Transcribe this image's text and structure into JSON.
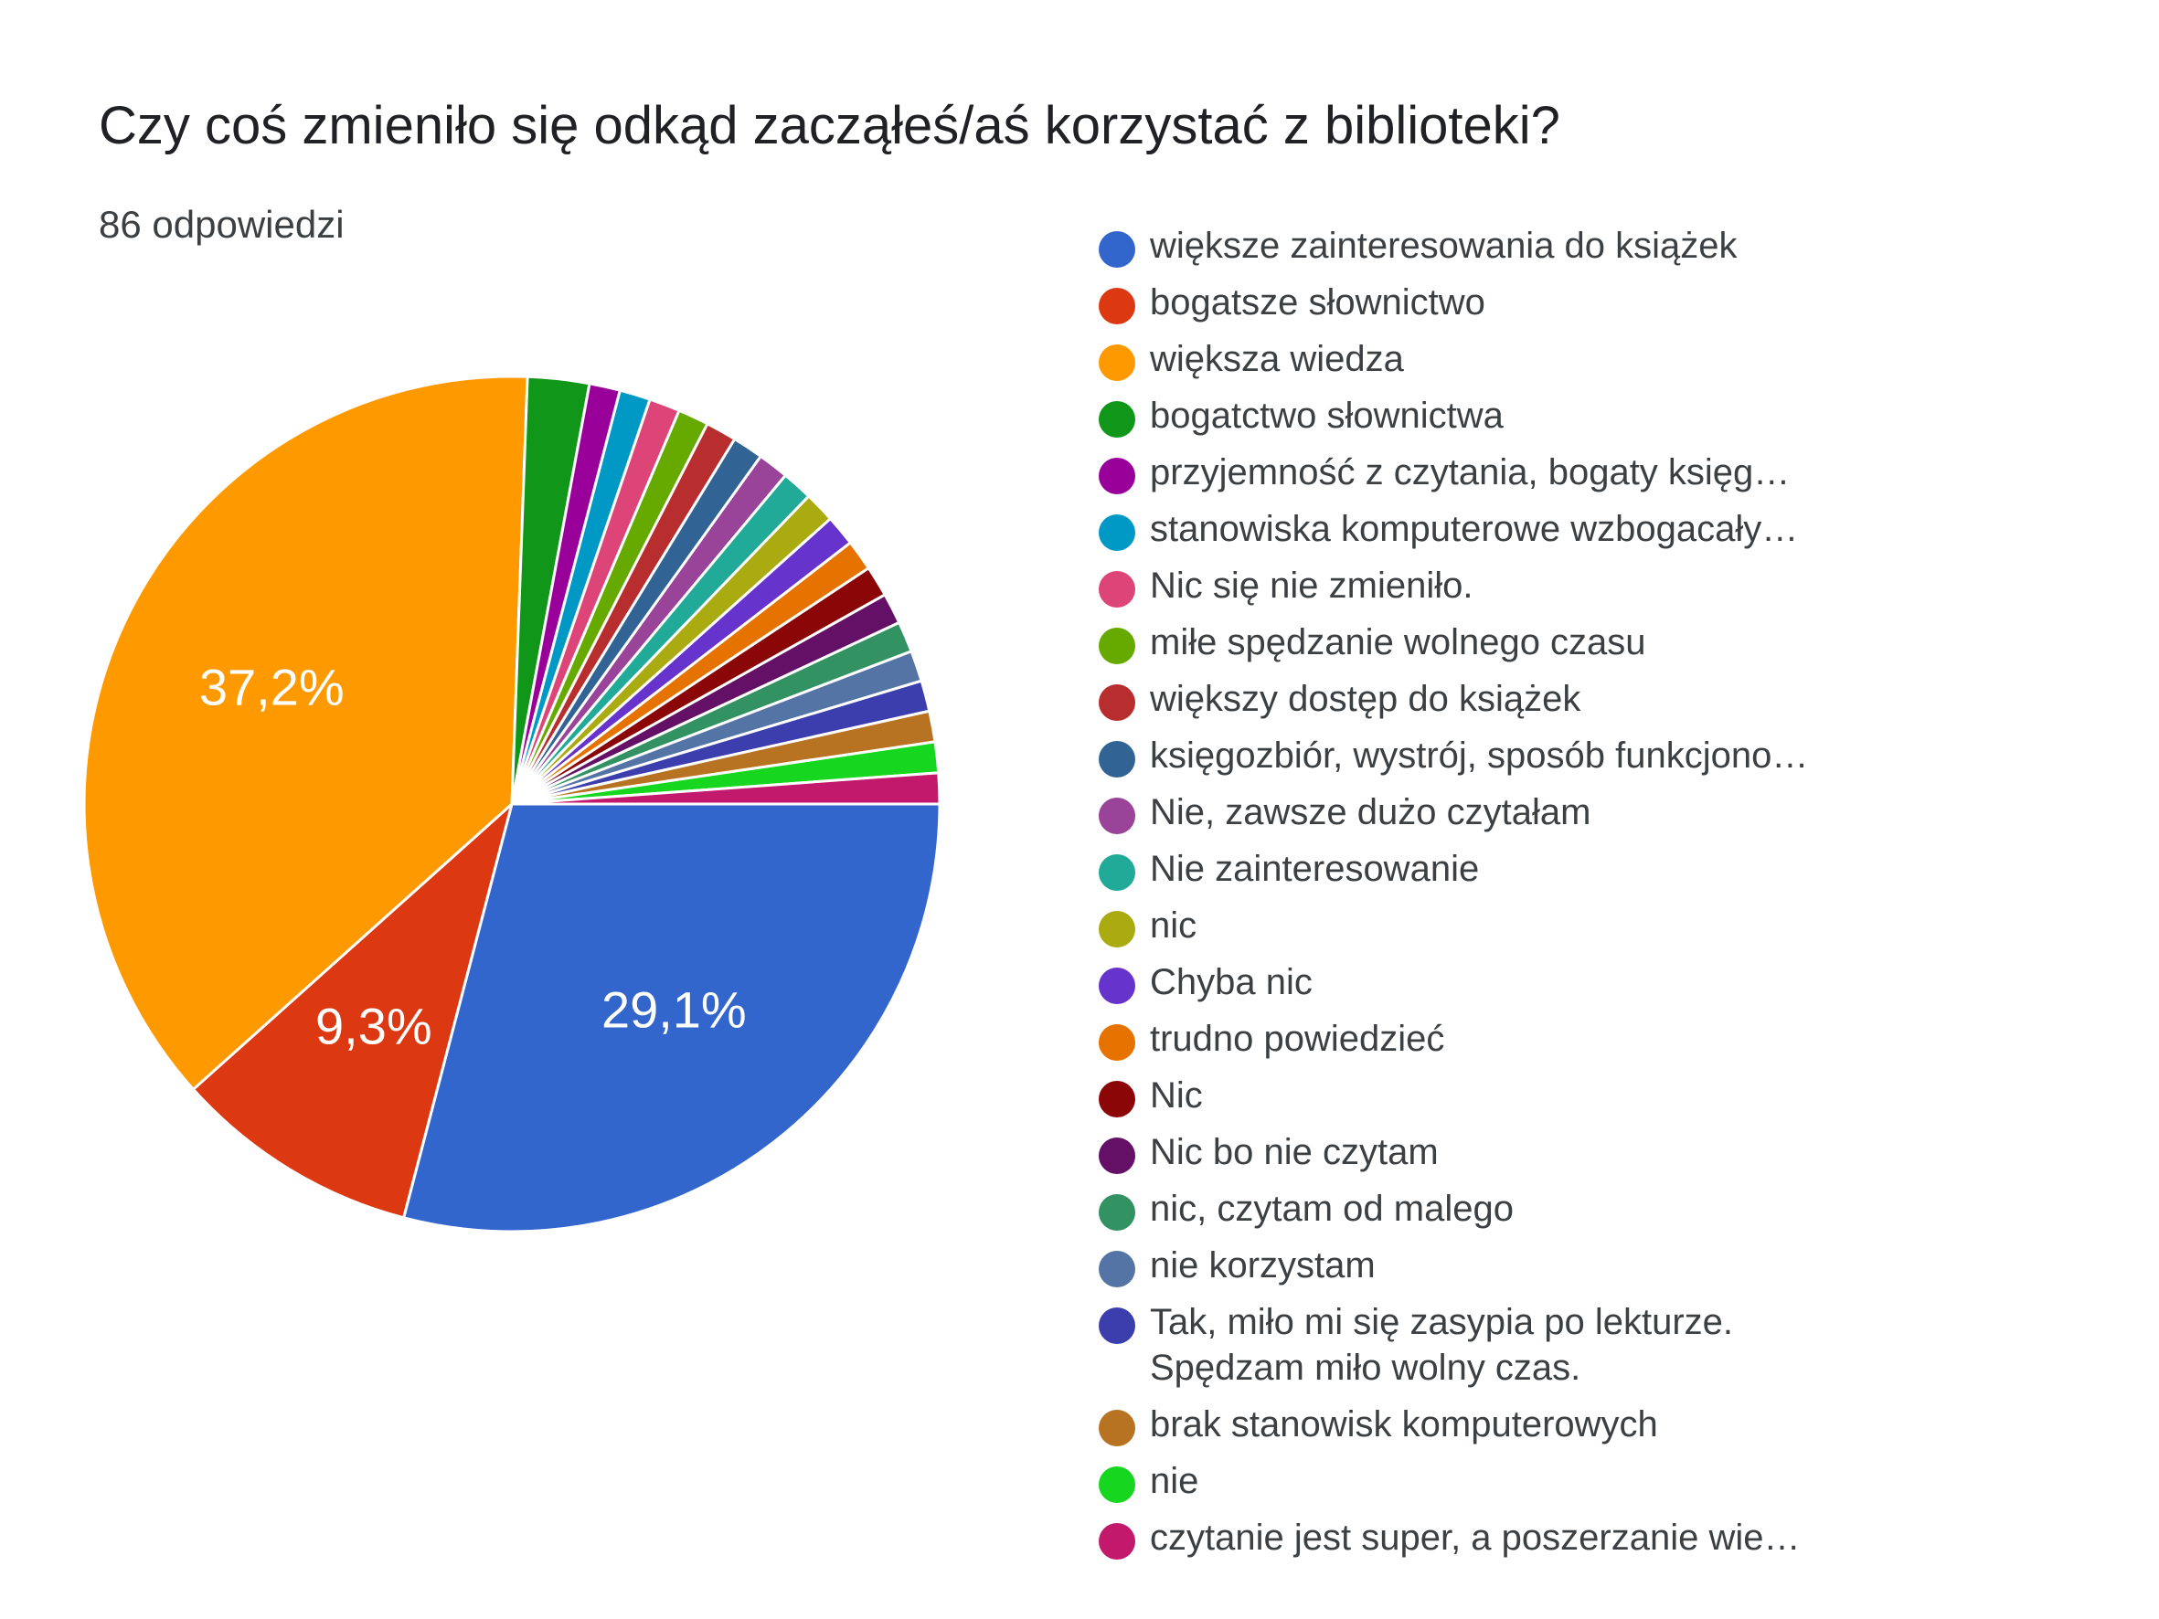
{
  "header": {
    "title": "Czy coś zmieniło się odkąd zacząłeś/aś korzystać z biblioteki?",
    "responses": "86 odpowiedzi"
  },
  "chart_data": {
    "type": "pie",
    "total_responses": 86,
    "start_angle": "right (3 o'clock), clockwise",
    "slices": [
      {
        "label": "większe zainteresowania do książek",
        "value": 25,
        "percent_label": "29,1%",
        "color": "#3366cc"
      },
      {
        "label": "bogatsze słownictwo",
        "value": 8,
        "percent_label": "9,3%",
        "color": "#dc3912"
      },
      {
        "label": "większa wiedza",
        "value": 32,
        "percent_label": "37,2%",
        "color": "#ff9900"
      },
      {
        "label": "bogatctwo słownictwa",
        "value": 2,
        "color": "#109618"
      },
      {
        "label": "przyjemność z czytania, bogaty księg…",
        "value": 1,
        "color": "#990099"
      },
      {
        "label": "stanowiska komputerowe wzbogacały…",
        "value": 1,
        "color": "#0099c6"
      },
      {
        "label": "Nic się nie zmieniło.",
        "value": 1,
        "color": "#dd4477"
      },
      {
        "label": "miłe spędzanie wolnego czasu",
        "value": 1,
        "color": "#66aa00"
      },
      {
        "label": "większy dostęp do książek",
        "value": 1,
        "color": "#b82e2e"
      },
      {
        "label": "księgozbiór, wystrój, sposób funkcjono…",
        "value": 1,
        "color": "#316395"
      },
      {
        "label": "Nie, zawsze dużo czytałam",
        "value": 1,
        "color": "#994499"
      },
      {
        "label": "Nie zainteresowanie",
        "value": 1,
        "color": "#22aa99"
      },
      {
        "label": "nic",
        "value": 1,
        "color": "#aaaa11"
      },
      {
        "label": "Chyba nic",
        "value": 1,
        "color": "#6633cc"
      },
      {
        "label": "trudno powiedzieć",
        "value": 1,
        "color": "#e67300"
      },
      {
        "label": "Nic",
        "value": 1,
        "color": "#8b0707"
      },
      {
        "label": "Nic bo nie czytam",
        "value": 1,
        "color": "#651067"
      },
      {
        "label": "nic, czytam od malego",
        "value": 1,
        "color": "#329262"
      },
      {
        "label": "nie korzystam",
        "value": 1,
        "color": "#5574a6"
      },
      {
        "label": "Tak, miło mi się zasypia po lekturze. Spędzam miło wolny czas.",
        "lines": [
          "Tak, miło mi się zasypia po lekturze.",
          "Spędzam miło wolny czas."
        ],
        "value": 1,
        "color": "#3b3eac"
      },
      {
        "label": "brak stanowisk komputerowych",
        "value": 1,
        "color": "#b77322"
      },
      {
        "label": "nie",
        "value": 1,
        "color": "#16d620"
      },
      {
        "label": "czytanie jest super, a poszerzanie wie…",
        "value": 1,
        "color": "#c2196d"
      }
    ]
  }
}
